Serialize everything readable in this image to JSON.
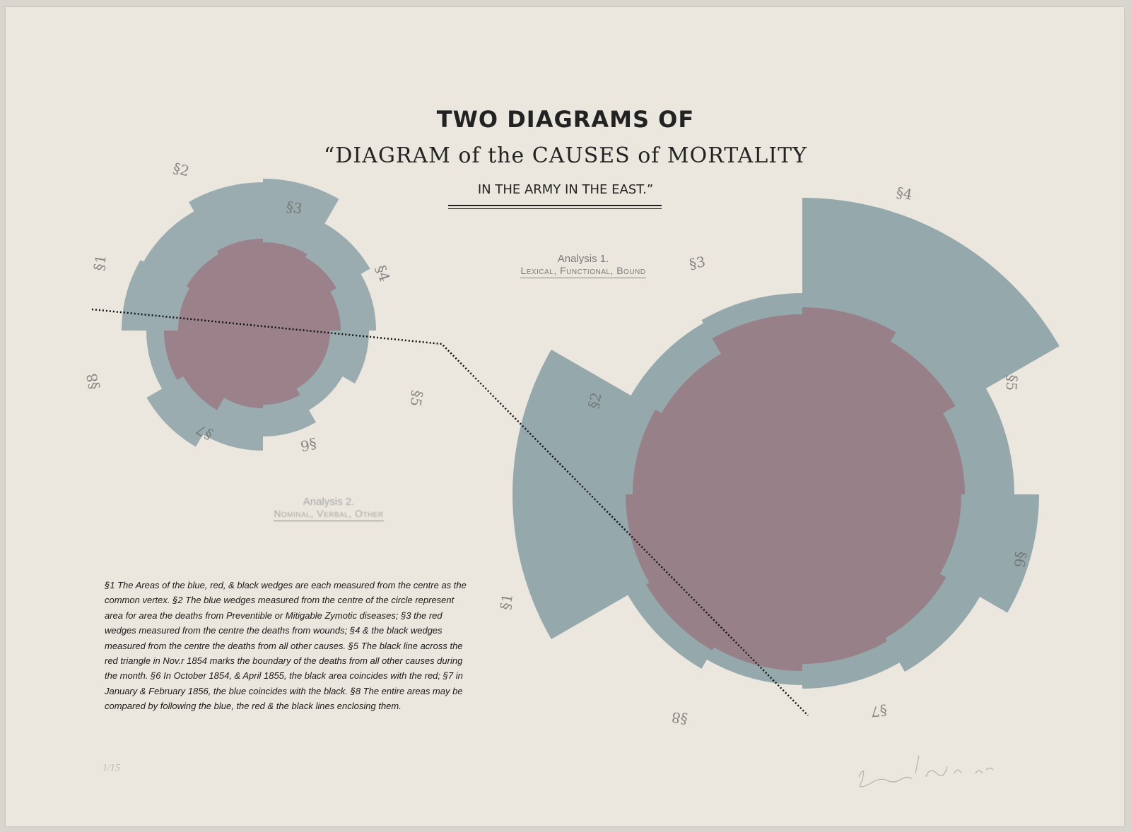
{
  "title": {
    "line1": "TWO DIAGRAMS OF",
    "line2": "“DIAGRAM of the CAUSES of MORTALITY",
    "line3": "IN THE ARMY IN THE EAST.”"
  },
  "analysis1": {
    "label": "Analysis 1.",
    "subtitle": "Lexical, Functional, Bound"
  },
  "analysis2": {
    "label": "Analysis 2.",
    "subtitle": "Nominal, Verbal, Other"
  },
  "small_diagram_labels": [
    "§1",
    "§2",
    "§3",
    "§4",
    "§5",
    "§6",
    "§7",
    "§8"
  ],
  "large_diagram_labels": [
    "§1",
    "§2",
    "§3",
    "§4",
    "§5",
    "§6",
    "§7",
    "§8"
  ],
  "notes": "§1 The Areas of the blue, red, & black wedges are each measured from the centre as the common vertex.  §2 The blue wedges measured from the centre of the circle represent area for area the deaths from Preventible or Mitigable Zymotic diseases;  §3 the red wedges measured from the centre the deaths from wounds;  §4 & the black wedges measured from the centre the deaths from all other causes.  §5 The black line across the red triangle in Nov.r 1854 marks the boundary of the deaths from all other causes during the month.  §6 In October 1854, & April 1855, the black area coincides with the red;  §7 in January & February 1856, the blue coincides with the black.  §8 The entire areas may be compared by following the blue, the red & the black lines enclosing them.",
  "edition": "1/15",
  "signature": "Sarah Hang 2019",
  "colors": {
    "paper": "#ebe7de",
    "blue": "#7f989f",
    "red": "#9b5f6c",
    "ink": "#1a1a1a"
  }
}
